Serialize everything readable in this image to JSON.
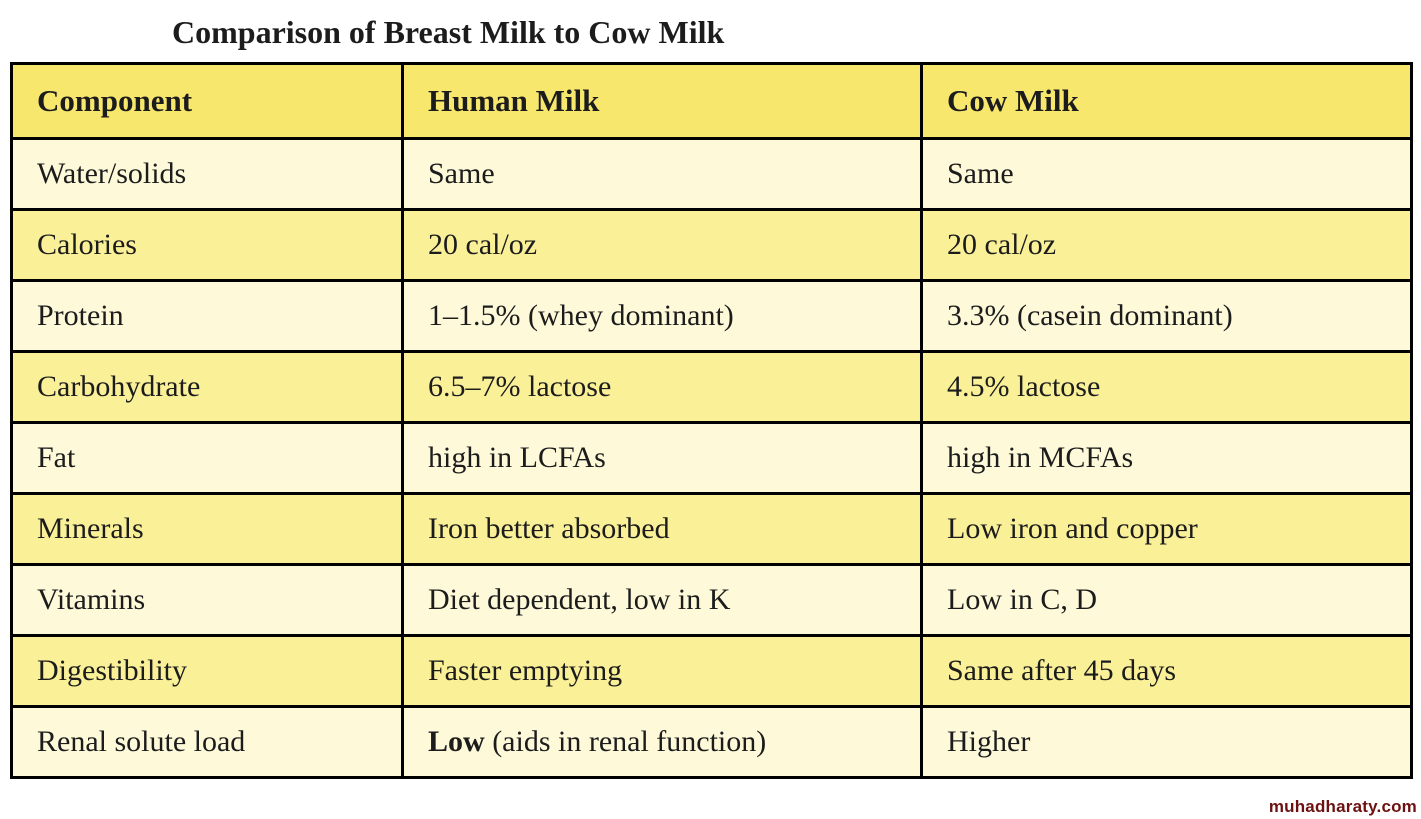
{
  "page": {
    "title": "Comparison of Breast Milk to Cow Milk",
    "watermark": "muhadharaty.com"
  },
  "colors": {
    "page_bg": "#ffffff",
    "header_bg": "#f8e76d",
    "row_light_bg": "#fdf9d9",
    "row_dark_bg": "#faf098",
    "border": "#000000",
    "text": "#1c1c1c",
    "watermark": "#6d1111"
  },
  "table": {
    "columns": [
      "Component",
      "Human Milk",
      "Cow Milk"
    ],
    "rows": [
      {
        "component": "Water/solids",
        "human_bold": "",
        "human": "Same",
        "cow": "Same"
      },
      {
        "component": "Calories",
        "human_bold": "",
        "human": "20 cal/oz",
        "cow": "20 cal/oz"
      },
      {
        "component": "Protein",
        "human_bold": "",
        "human": "1–1.5% (whey dominant)",
        "cow": "3.3% (casein dominant)"
      },
      {
        "component": "Carbohydrate",
        "human_bold": "",
        "human": "6.5–7% lactose",
        "cow": "4.5% lactose"
      },
      {
        "component": "Fat",
        "human_bold": "",
        "human": "high in LCFAs",
        "cow": "high in MCFAs"
      },
      {
        "component": "Minerals",
        "human_bold": "",
        "human": "Iron better absorbed",
        "cow": "Low iron and copper"
      },
      {
        "component": "Vitamins",
        "human_bold": "",
        "human": "Diet dependent, low in K",
        "cow": "Low in C, D"
      },
      {
        "component": "Digestibility",
        "human_bold": "",
        "human": "Faster emptying",
        "cow": "Same after 45 days"
      },
      {
        "component": "Renal solute load",
        "human_bold": "Low",
        "human": " (aids in renal function)",
        "cow": "Higher"
      }
    ]
  }
}
